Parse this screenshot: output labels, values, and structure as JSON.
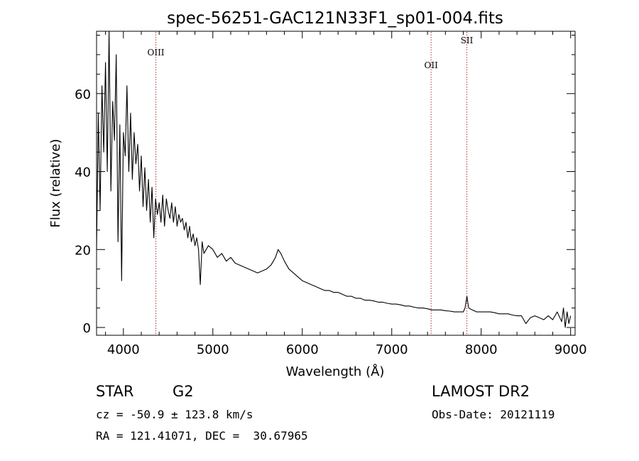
{
  "chart_data": {
    "type": "line",
    "title": "spec-56251-GAC121N33F1_sp01-004.fits",
    "xlabel": "Wavelength (Å)",
    "ylabel": "Flux (relative)",
    "xlim": [
      3700,
      9050
    ],
    "ylim": [
      -2,
      76
    ],
    "xticks": [
      4000,
      5000,
      6000,
      7000,
      8000,
      9000
    ],
    "xtick_labels": [
      "4000",
      "5000",
      "6000",
      "7000",
      "8000",
      "9000"
    ],
    "yticks": [
      0,
      20,
      40,
      60
    ],
    "ytick_labels": [
      "0",
      "20",
      "40",
      "60"
    ],
    "lines": [
      {
        "label": "OIII",
        "wavelength": 4363
      },
      {
        "label": "OII",
        "wavelength": 7440
      },
      {
        "label": "SII",
        "wavelength": 7840
      }
    ],
    "series": [
      {
        "name": "spectrum",
        "x": [
          3700,
          3720,
          3740,
          3760,
          3780,
          3800,
          3820,
          3840,
          3860,
          3880,
          3900,
          3920,
          3940,
          3960,
          3980,
          4000,
          4020,
          4040,
          4060,
          4080,
          4100,
          4120,
          4140,
          4160,
          4180,
          4200,
          4220,
          4240,
          4260,
          4280,
          4300,
          4320,
          4340,
          4360,
          4380,
          4400,
          4420,
          4440,
          4460,
          4480,
          4500,
          4520,
          4540,
          4560,
          4580,
          4600,
          4620,
          4640,
          4660,
          4680,
          4700,
          4720,
          4740,
          4760,
          4780,
          4800,
          4820,
          4840,
          4860,
          4880,
          4900,
          4950,
          5000,
          5050,
          5100,
          5150,
          5200,
          5250,
          5300,
          5350,
          5400,
          5450,
          5500,
          5550,
          5600,
          5650,
          5700,
          5730,
          5760,
          5800,
          5850,
          5900,
          5950,
          6000,
          6050,
          6100,
          6150,
          6200,
          6250,
          6300,
          6350,
          6400,
          6450,
          6500,
          6550,
          6600,
          6650,
          6700,
          6750,
          6800,
          6850,
          6900,
          6950,
          7000,
          7050,
          7100,
          7150,
          7200,
          7250,
          7300,
          7350,
          7400,
          7450,
          7500,
          7550,
          7600,
          7650,
          7700,
          7750,
          7800,
          7820,
          7840,
          7860,
          7900,
          7950,
          8000,
          8050,
          8100,
          8150,
          8200,
          8250,
          8300,
          8350,
          8400,
          8450,
          8500,
          8550,
          8600,
          8650,
          8700,
          8750,
          8800,
          8850,
          8900,
          8920,
          8940,
          8960,
          8980,
          9000
        ],
        "y": [
          20,
          55,
          30,
          62,
          45,
          68,
          40,
          76,
          35,
          58,
          48,
          70,
          22,
          52,
          12,
          50,
          44,
          62,
          40,
          55,
          38,
          50,
          42,
          47,
          35,
          44,
          31,
          41,
          30,
          38,
          27,
          36,
          23,
          33,
          29,
          32,
          27,
          34,
          26,
          33,
          30,
          28,
          32,
          27,
          31,
          26,
          29,
          27,
          28,
          25,
          27,
          23,
          26,
          22,
          24,
          21,
          23,
          20,
          11,
          22,
          19,
          21,
          20,
          18,
          19,
          17,
          18,
          16.5,
          16,
          15.5,
          15,
          14.5,
          14,
          14.5,
          15,
          16,
          18,
          20,
          19,
          17,
          15,
          14,
          13,
          12,
          11.5,
          11,
          10.5,
          10,
          9.5,
          9.5,
          9,
          9,
          8.5,
          8,
          8,
          7.5,
          7.5,
          7,
          7,
          6.8,
          6.5,
          6.5,
          6.2,
          6,
          6,
          5.8,
          5.5,
          5.5,
          5.2,
          5,
          5,
          4.8,
          4.5,
          4.5,
          4.5,
          4.3,
          4.2,
          4,
          4,
          4,
          5,
          8,
          5,
          4.5,
          4,
          4,
          4,
          4,
          3.8,
          3.5,
          3.5,
          3.5,
          3.2,
          3,
          3,
          1,
          2.5,
          3,
          2.5,
          2,
          3,
          2,
          4,
          1.5,
          5,
          0,
          4,
          1,
          3
        ]
      }
    ]
  },
  "info": {
    "object_class": "STAR",
    "subclass": "G2",
    "survey": "LAMOST DR2",
    "cz": "cz = -50.9 ± 123.8 km/s",
    "obs_date": "Obs-Date: 20121119",
    "coords": "RA = 121.41071, DEC =  30.67965"
  },
  "colors": {
    "line_marker": "#b03030",
    "spectrum": "#000000"
  }
}
